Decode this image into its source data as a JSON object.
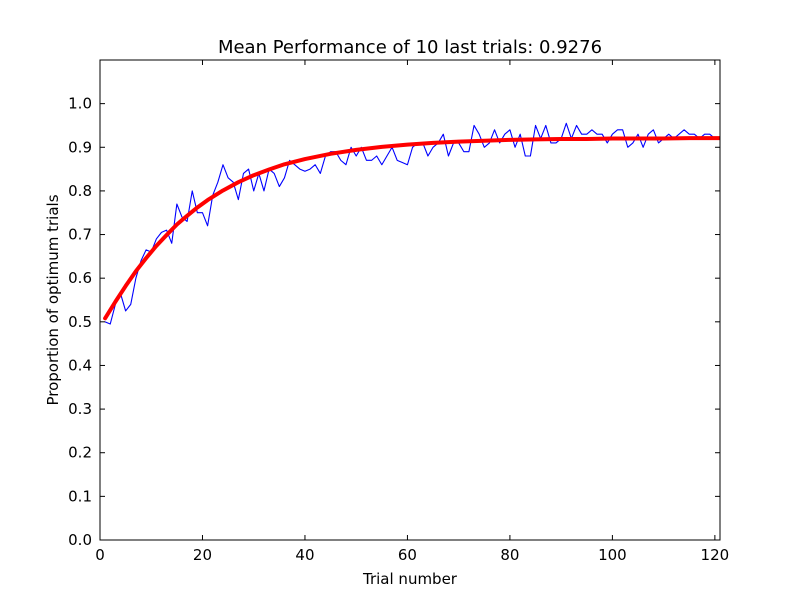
{
  "chart_data": {
    "type": "line",
    "title": "Mean Performance of 10 last trials: 0.9276",
    "xlabel": "Trial number",
    "ylabel": "Proportion of optimum trials",
    "xlim": [
      0,
      121
    ],
    "ylim": [
      0,
      1.1
    ],
    "xticks": [
      0,
      20,
      40,
      60,
      80,
      100,
      120
    ],
    "yticks": [
      0.0,
      0.1,
      0.2,
      0.3,
      0.4,
      0.5,
      0.6,
      0.7,
      0.8,
      0.9,
      1.0
    ],
    "xtick_labels": [
      "0",
      "20",
      "40",
      "60",
      "80",
      "100",
      "120"
    ],
    "ytick_labels": [
      "0.0",
      "0.1",
      "0.2",
      "0.3",
      "0.4",
      "0.5",
      "0.6",
      "0.7",
      "0.8",
      "0.9",
      "1.0"
    ],
    "grid": false,
    "series": [
      {
        "color": "#0000ff",
        "style": "thin-line",
        "x": [
          1,
          2,
          3,
          4,
          5,
          6,
          7,
          8,
          9,
          10,
          11,
          12,
          13,
          14,
          15,
          16,
          17,
          18,
          19,
          20,
          21,
          22,
          23,
          24,
          25,
          26,
          27,
          28,
          29,
          30,
          31,
          32,
          33,
          34,
          35,
          36,
          37,
          38,
          39,
          40,
          41,
          42,
          43,
          44,
          45,
          46,
          47,
          48,
          49,
          50,
          51,
          52,
          53,
          54,
          55,
          56,
          57,
          58,
          59,
          60,
          61,
          62,
          63,
          64,
          65,
          66,
          67,
          68,
          69,
          70,
          71,
          72,
          73,
          74,
          75,
          76,
          77,
          78,
          79,
          80,
          81,
          82,
          83,
          84,
          85,
          86,
          87,
          88,
          89,
          90,
          91,
          92,
          93,
          94,
          95,
          96,
          97,
          98,
          99,
          100,
          101,
          102,
          103,
          104,
          105,
          106,
          107,
          108,
          109,
          110,
          111,
          112,
          113,
          114,
          115,
          116,
          117,
          118,
          119,
          120,
          121
        ],
        "y": [
          0.5,
          0.495,
          0.54,
          0.565,
          0.525,
          0.54,
          0.6,
          0.64,
          0.665,
          0.66,
          0.69,
          0.705,
          0.71,
          0.68,
          0.77,
          0.74,
          0.73,
          0.8,
          0.75,
          0.75,
          0.72,
          0.79,
          0.82,
          0.86,
          0.83,
          0.82,
          0.78,
          0.84,
          0.85,
          0.8,
          0.84,
          0.8,
          0.85,
          0.84,
          0.81,
          0.83,
          0.87,
          0.86,
          0.85,
          0.845,
          0.85,
          0.86,
          0.84,
          0.88,
          0.89,
          0.89,
          0.87,
          0.86,
          0.9,
          0.88,
          0.9,
          0.87,
          0.87,
          0.88,
          0.86,
          0.88,
          0.9,
          0.87,
          0.865,
          0.86,
          0.9,
          0.91,
          0.91,
          0.88,
          0.9,
          0.91,
          0.93,
          0.88,
          0.91,
          0.91,
          0.89,
          0.89,
          0.95,
          0.93,
          0.9,
          0.91,
          0.94,
          0.91,
          0.93,
          0.94,
          0.9,
          0.93,
          0.88,
          0.88,
          0.95,
          0.92,
          0.95,
          0.91,
          0.91,
          0.92,
          0.955,
          0.92,
          0.95,
          0.93,
          0.93,
          0.94,
          0.93,
          0.93,
          0.91,
          0.93,
          0.94,
          0.94,
          0.9,
          0.91,
          0.93,
          0.9,
          0.93,
          0.94,
          0.91,
          0.92,
          0.93,
          0.92,
          0.93,
          0.94,
          0.93,
          0.93,
          0.92,
          0.93,
          0.93,
          0.92,
          0.92
        ]
      },
      {
        "color": "#ff0000",
        "style": "thick-fit-line",
        "fit": "exponential",
        "x": [
          1,
          3,
          5,
          7,
          9,
          11,
          13,
          15,
          17,
          19,
          21,
          24,
          27,
          30,
          33,
          36,
          40,
          45,
          50,
          55,
          60,
          65,
          70,
          75,
          80,
          85,
          90,
          95,
          100,
          105,
          110,
          115,
          121
        ],
        "y": [
          0.508,
          0.546,
          0.582,
          0.616,
          0.646,
          0.674,
          0.699,
          0.723,
          0.743,
          0.762,
          0.779,
          0.801,
          0.82,
          0.836,
          0.849,
          0.861,
          0.873,
          0.885,
          0.894,
          0.901,
          0.906,
          0.91,
          0.913,
          0.915,
          0.917,
          0.918,
          0.919,
          0.919,
          0.92,
          0.92,
          0.92,
          0.921,
          0.921
        ]
      }
    ]
  }
}
